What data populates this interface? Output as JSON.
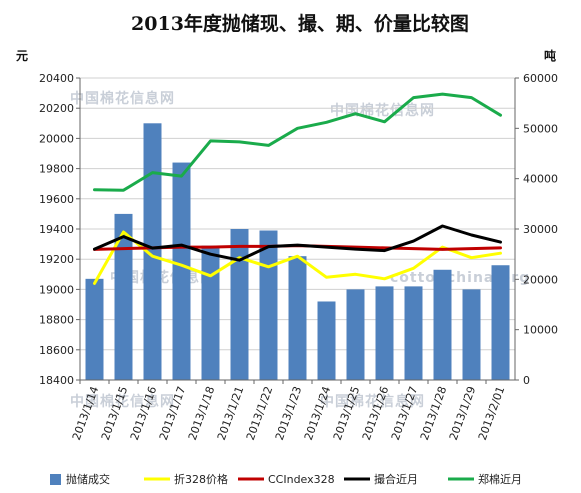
{
  "chart_data": {
    "type": "bar",
    "title": "2013年度抛储现、撮、期、价量比较图",
    "ylabel_left": "元",
    "ylabel_right": "吨",
    "categories": [
      "2013/1/14",
      "2013/1/15",
      "2013/1/16",
      "2013/1/17",
      "2013/1/18",
      "2013/1/21",
      "2013/1/22",
      "2013/1/23",
      "2013/1/24",
      "2013/1/25",
      "2013/1/26",
      "2013/1/27",
      "2013/1/28",
      "2013/1/29",
      "2013/2/01"
    ],
    "ylim_left": [
      18400,
      20400
    ],
    "ylim_right": [
      0,
      60000
    ],
    "yticks_left": [
      18400,
      18600,
      18800,
      19000,
      19200,
      19400,
      19600,
      19800,
      20000,
      20200,
      20400
    ],
    "yticks_right": [
      0,
      10000,
      20000,
      30000,
      40000,
      50000,
      60000
    ],
    "series": [
      {
        "name": "抛储成交",
        "type": "bar",
        "axis": "left",
        "color": "#4f81bd",
        "values": [
          19070,
          19500,
          20100,
          19840,
          19290,
          19400,
          19390,
          19220,
          18920,
          19000,
          19020,
          19020,
          19130,
          19000,
          19160
        ]
      },
      {
        "name": "折328价格",
        "type": "line",
        "axis": "left",
        "color": "#ffff00",
        "values": [
          19040,
          19380,
          19220,
          19160,
          19090,
          19210,
          19150,
          19220,
          19080,
          19100,
          19070,
          19140,
          19280,
          19210,
          19240
        ]
      },
      {
        "name": "CCIndex328",
        "type": "line",
        "axis": "left",
        "color": "#c00000",
        "values": [
          19265,
          19270,
          19275,
          19280,
          19280,
          19285,
          19285,
          19290,
          19285,
          19280,
          19275,
          19270,
          19265,
          19270,
          19275
        ]
      },
      {
        "name": "撮合近月",
        "type": "line",
        "axis": "right",
        "color": "#000000",
        "values": [
          26000,
          28500,
          26200,
          26800,
          25000,
          23800,
          26500,
          26800,
          26400,
          26000,
          25700,
          27600,
          30600,
          28800,
          27400
        ]
      },
      {
        "name": "郑棉近月",
        "type": "line",
        "axis": "right",
        "color": "#1aab4b",
        "values": [
          37800,
          37700,
          41200,
          40500,
          47500,
          47300,
          46600,
          50000,
          51200,
          52900,
          51300,
          56100,
          56800,
          56100,
          52600
        ]
      }
    ],
    "grid": true,
    "legend_position": "bottom"
  },
  "watermarks": [
    "中国棉花信息网",
    "cottonchina.org"
  ]
}
